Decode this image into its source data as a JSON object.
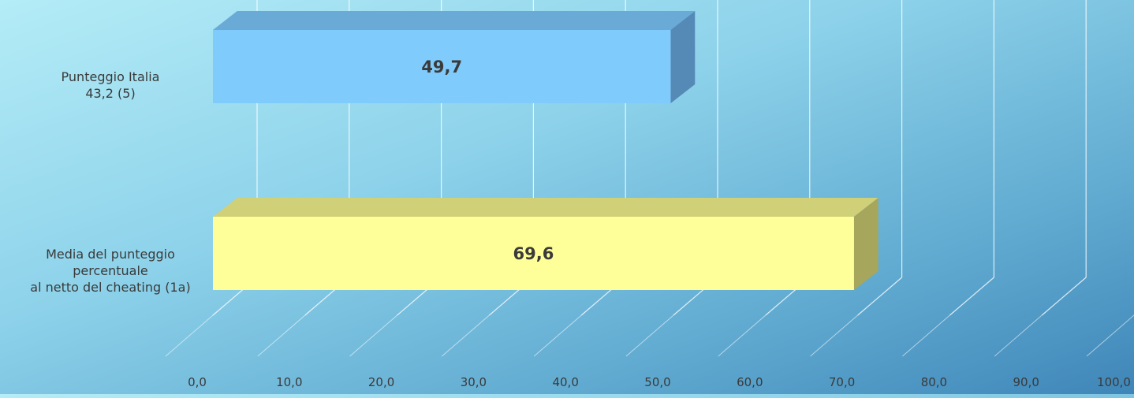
{
  "chart_data": {
    "type": "bar",
    "orientation": "horizontal",
    "style": "3d",
    "categories": [
      "Punteggio Italia\n43,2 (5)",
      "Media del punteggio\npercentuale\nal netto del cheating (1a)"
    ],
    "values": [
      49.7,
      69.6
    ],
    "value_labels": [
      "49,7",
      "69,6"
    ],
    "colors": [
      "#7fcbfb",
      "#ffff99"
    ],
    "side_colors": [
      "#5589b6",
      "#a6a65c"
    ],
    "top_colors": [
      "#6aaad6",
      "#d0d078"
    ],
    "xlim": [
      0,
      100
    ],
    "xticks": [
      0,
      10,
      20,
      30,
      40,
      50,
      60,
      70,
      80,
      90,
      100
    ],
    "xtick_labels": [
      "0,0",
      "10,0",
      "20,0",
      "30,0",
      "40,0",
      "50,0",
      "60,0",
      "70,0",
      "80,0",
      "90,0",
      "100,0"
    ],
    "grid": true,
    "title": "",
    "xlabel": "",
    "ylabel": ""
  }
}
